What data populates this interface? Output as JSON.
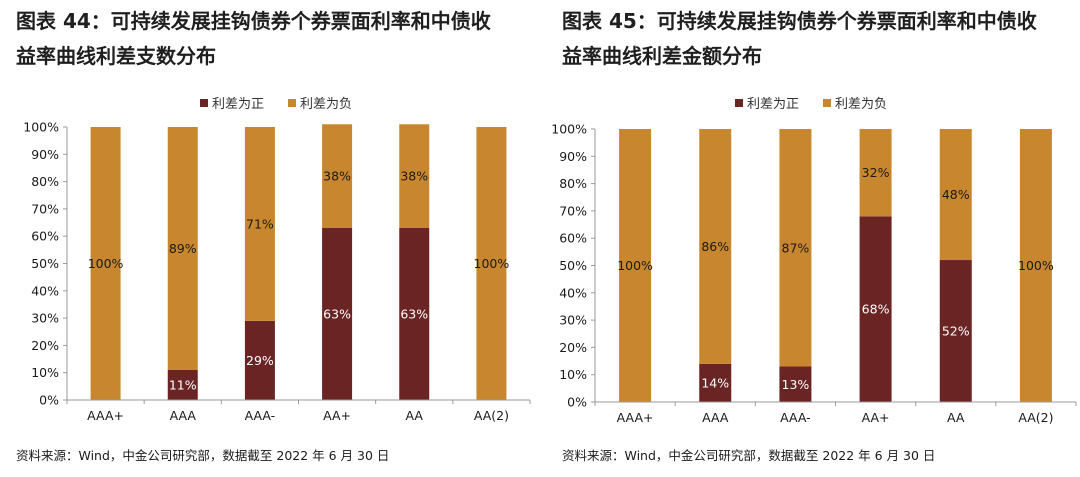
{
  "colors": {
    "positive": "#6b2424",
    "negative": "#c8872f",
    "axis": "#9a9a9a"
  },
  "legend": {
    "positive": "利差为正",
    "negative": "利差为负"
  },
  "source_left": "资料来源：Wind，中金公司研究部，数据截至 2022 年 6 月 30 日",
  "source_right": "资料来源：Wind，中金公司研究部，数据截至 2022 年 6 月 30 日",
  "chart_data": [
    {
      "type": "bar",
      "stacked": true,
      "title_line1": "图表 44：可持续发展挂钩债券个券票面利率和中债收",
      "title_line2": "益率曲线利差支数分布",
      "categories": [
        "AAA+",
        "AAA",
        "AAA-",
        "AA+",
        "AA",
        "AA(2)"
      ],
      "series": [
        {
          "name": "利差为正",
          "values": [
            0,
            11,
            29,
            63,
            63,
            0
          ],
          "labels": [
            "",
            "11%",
            "29%",
            "63%",
            "63%",
            ""
          ]
        },
        {
          "name": "利差为负",
          "values": [
            100,
            89,
            71,
            38,
            38,
            100
          ],
          "labels": [
            "100%",
            "89%",
            "71%",
            "38%",
            "38%",
            "100%"
          ]
        }
      ],
      "yticks": [
        "0%",
        "10%",
        "20%",
        "30%",
        "40%",
        "50%",
        "60%",
        "70%",
        "80%",
        "90%",
        "100%"
      ],
      "ylim": [
        0,
        100
      ],
      "legend_position": "top-center"
    },
    {
      "type": "bar",
      "stacked": true,
      "title_line1": "图表 45：可持续发展挂钩债券个券票面利率和中债收",
      "title_line2": "益率曲线利差金额分布",
      "categories": [
        "AAA+",
        "AAA",
        "AAA-",
        "AA+",
        "AA",
        "AA(2)"
      ],
      "series": [
        {
          "name": "利差为正",
          "values": [
            0,
            14,
            13,
            68,
            52,
            0
          ],
          "labels": [
            "",
            "14%",
            "13%",
            "68%",
            "52%",
            ""
          ]
        },
        {
          "name": "利差为负",
          "values": [
            100,
            86,
            87,
            32,
            48,
            100
          ],
          "labels": [
            "100%",
            "86%",
            "87%",
            "32%",
            "48%",
            "100%"
          ]
        }
      ],
      "yticks": [
        "0%",
        "10%",
        "20%",
        "30%",
        "40%",
        "50%",
        "60%",
        "70%",
        "80%",
        "90%",
        "100%"
      ],
      "ylim": [
        0,
        100
      ],
      "legend_position": "top-center"
    }
  ]
}
